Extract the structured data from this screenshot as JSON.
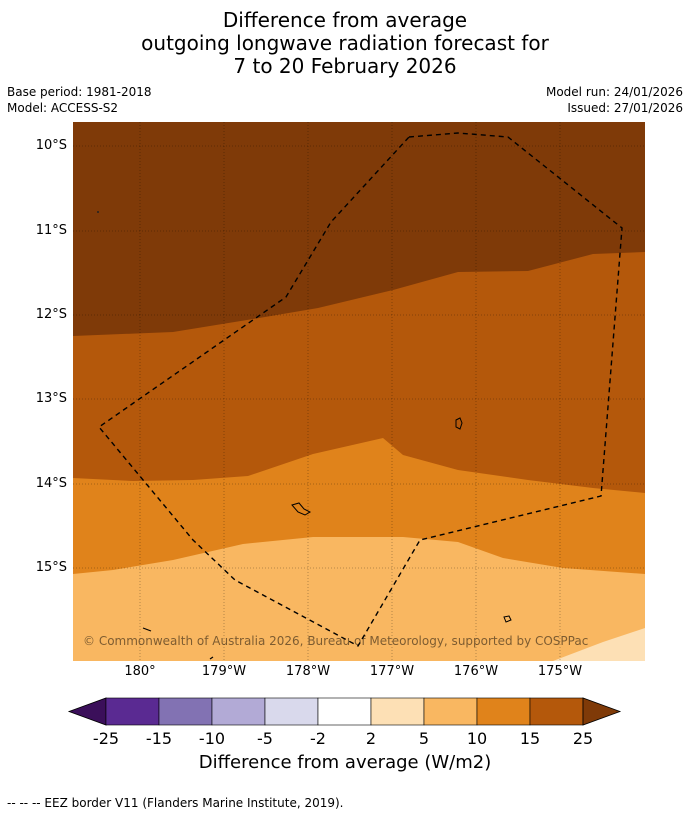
{
  "title": {
    "line1": "Difference from average",
    "line2": "outgoing longwave radiation forecast for",
    "line3": "7 to 20 February 2026"
  },
  "meta": {
    "base_period": "Base period: 1981-2018",
    "model": "Model: ACCESS-S2",
    "model_run": "Model run: 24/01/2026",
    "issued": "Issued: 27/01/2026"
  },
  "map": {
    "lat_labels": [
      "10°S",
      "11°S",
      "12°S",
      "13°S",
      "14°S",
      "15°S"
    ],
    "lon_labels": [
      "180°",
      "179°W",
      "178°W",
      "177°W",
      "176°W",
      "175°W"
    ],
    "copyright": "© Commonwealth of Australia 2026, Bureau of Meteorology, supported by COSPPac"
  },
  "colorbar": {
    "labels": [
      "-25",
      "-15",
      "-10",
      "-5",
      "-2",
      "2",
      "5",
      "10",
      "15",
      "25"
    ],
    "colors": [
      "#3b0f5a",
      "#5a2a92",
      "#8272b3",
      "#b2aad6",
      "#d9d9ec",
      "#ffffff",
      "#fde0b5",
      "#f9b761",
      "#e0831b",
      "#b4580b",
      "#7f3a08"
    ],
    "title": "Difference from average (W/m2)"
  },
  "legend": {
    "eez": "--  --  -- EEZ border V11 (Flanders Marine Institute, 2019)."
  }
}
